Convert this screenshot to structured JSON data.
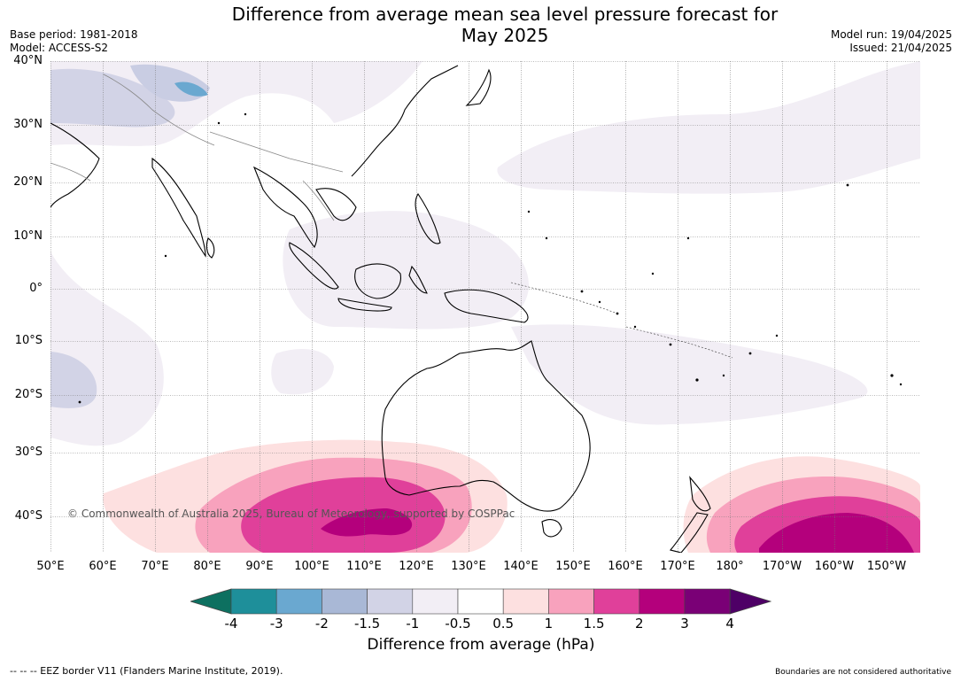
{
  "title": {
    "line1": "Difference from average mean sea level pressure forecast for",
    "line2": "May 2025"
  },
  "meta": {
    "base_period": "Base period: 1981-2018",
    "model": "Model: ACCESS-S2",
    "model_run": "Model run: 19/04/2025",
    "issued": "Issued: 21/04/2025"
  },
  "map": {
    "lat_labels": [
      "40°N",
      "30°N",
      "20°N",
      "10°N",
      "0°",
      "10°S",
      "20°S",
      "30°S",
      "40°S"
    ],
    "lon_labels": [
      "50°E",
      "60°E",
      "70°E",
      "80°E",
      "90°E",
      "100°E",
      "110°E",
      "120°E",
      "130°E",
      "140°E",
      "150°E",
      "160°E",
      "170°E",
      "180°",
      "170°W",
      "160°W",
      "150°W"
    ],
    "copyright": "© Commonwealth of Australia 2025, Bureau of Meteorology, supported by COSPPac",
    "ocean_color": "#ffffff",
    "coastline_color": "#000000",
    "border_color": "#888888"
  },
  "colorbar": {
    "ticks": [
      "-4",
      "-3",
      "-2",
      "-1.5",
      "-1",
      "-0.5",
      "0.5",
      "1",
      "1.5",
      "2",
      "3",
      "4"
    ],
    "colors": [
      "#0d7060",
      "#1e8f9a",
      "#6aa8d0",
      "#a9b8d6",
      "#d2d3e6",
      "#f2eef5",
      "#ffffff",
      "#fde0e0",
      "#f8a2bd",
      "#e0409a",
      "#b4007c",
      "#7a0076",
      "#4e0066"
    ],
    "title": "Difference from average (hPa)"
  },
  "footer": {
    "eez": "--  --  -- EEZ border V11 (Flanders Marine Institute, 2019).",
    "disclaimer": "Boundaries are not considered authoritative"
  }
}
